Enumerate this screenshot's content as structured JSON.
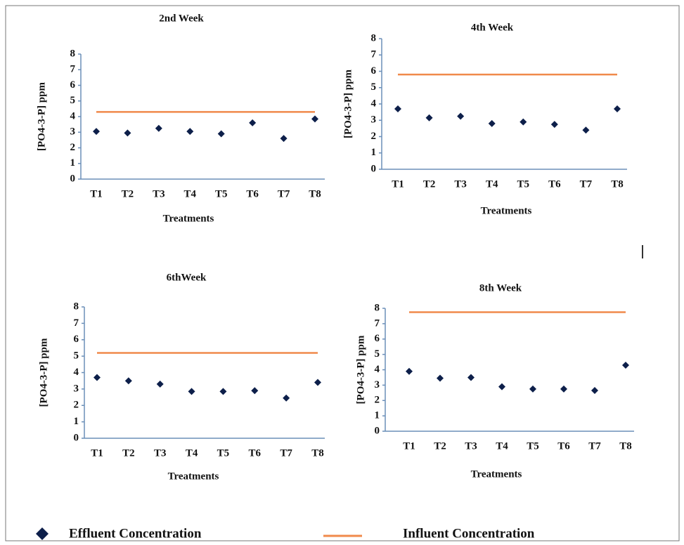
{
  "chart_data": [
    {
      "type": "scatter",
      "title": "2nd Week",
      "x_label": "Treatments",
      "y_label": "[PO4-3-P] ppm",
      "categories": [
        "T1",
        "T2",
        "T3",
        "T4",
        "T5",
        "T6",
        "T7",
        "T8"
      ],
      "series": [
        {
          "color": "#0d1f4a",
          "marker": "diamond",
          "values": [
            3.05,
            2.95,
            3.25,
            3.05,
            2.9,
            3.6,
            2.6,
            3.85
          ]
        },
        {
          "color": "#f08a4b",
          "marker": "line",
          "values": [
            4.3,
            4.3,
            4.3,
            4.3,
            4.3,
            4.3,
            4.3,
            4.3
          ]
        }
      ],
      "ylim": [
        0,
        8
      ],
      "yticks": [
        0,
        1,
        2,
        3,
        4,
        5,
        6,
        7,
        8
      ]
    },
    {
      "type": "scatter",
      "title": "4th Week",
      "x_label": "Treatments",
      "y_label": "[PO4-3-P] ppm",
      "categories": [
        "T1",
        "T2",
        "T3",
        "T4",
        "T5",
        "T6",
        "T7",
        "T8"
      ],
      "series": [
        {
          "color": "#0d1f4a",
          "marker": "diamond",
          "values": [
            3.7,
            3.15,
            3.25,
            2.8,
            2.9,
            2.75,
            2.4,
            3.7
          ]
        },
        {
          "color": "#f08a4b",
          "marker": "line",
          "values": [
            5.8,
            5.8,
            5.8,
            5.8,
            5.8,
            5.8,
            5.8,
            5.8
          ]
        }
      ],
      "ylim": [
        0,
        8
      ],
      "yticks": [
        0,
        1,
        2,
        3,
        4,
        5,
        6,
        7,
        8
      ]
    },
    {
      "type": "scatter",
      "title": "6thWeek",
      "x_label": "Treatments",
      "y_label": "[PO4-3-P] ppm",
      "categories": [
        "T1",
        "T2",
        "T3",
        "T4",
        "T5",
        "T6",
        "T7",
        "T8"
      ],
      "series": [
        {
          "color": "#0d1f4a",
          "marker": "diamond",
          "values": [
            3.7,
            3.5,
            3.3,
            2.85,
            2.85,
            2.9,
            2.45,
            3.4
          ]
        },
        {
          "color": "#f08a4b",
          "marker": "line",
          "values": [
            5.2,
            5.2,
            5.2,
            5.2,
            5.2,
            5.2,
            5.2,
            5.2
          ]
        }
      ],
      "ylim": [
        0,
        8
      ],
      "yticks": [
        0,
        1,
        2,
        3,
        4,
        5,
        6,
        7,
        8
      ]
    },
    {
      "type": "scatter",
      "title": "8th Week",
      "x_label": "Treatments",
      "y_label": "[PO4-3-P] ppm",
      "categories": [
        "T1",
        "T2",
        "T3",
        "T4",
        "T5",
        "T6",
        "T7",
        "T8"
      ],
      "series": [
        {
          "color": "#0d1f4a",
          "marker": "diamond",
          "values": [
            3.9,
            3.45,
            3.5,
            2.9,
            2.75,
            2.75,
            2.65,
            4.3
          ]
        },
        {
          "color": "#f08a4b",
          "marker": "line",
          "values": [
            7.75,
            7.75,
            7.75,
            7.75,
            7.75,
            7.75,
            7.75,
            7.75
          ]
        }
      ],
      "ylim": [
        0,
        8
      ],
      "yticks": [
        0,
        1,
        2,
        3,
        4,
        5,
        6,
        7,
        8
      ]
    }
  ],
  "legend": [
    "Effluent Concentration",
    "Influent Concentration"
  ]
}
